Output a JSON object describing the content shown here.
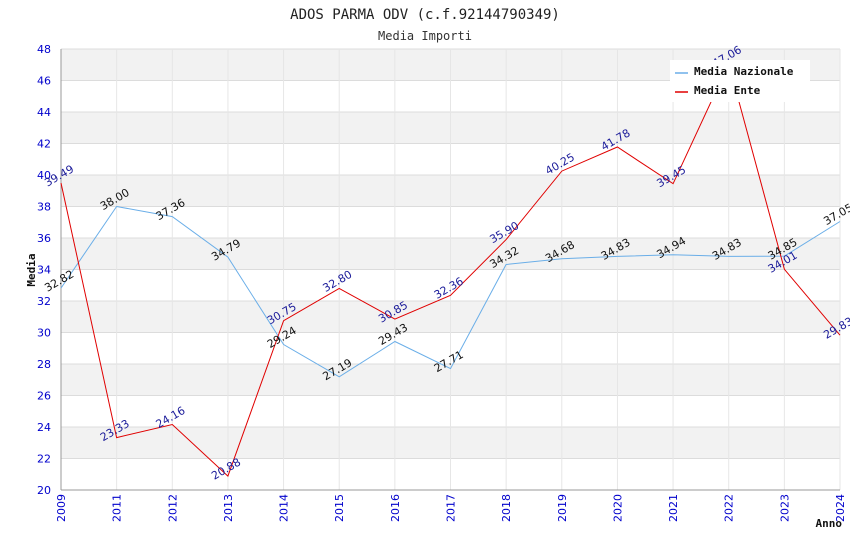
{
  "chart_data": {
    "type": "line",
    "title": "ADOS PARMA ODV (c.f.92144790349)",
    "subtitle": "Media Importi",
    "xlabel": "Anno",
    "ylabel": "Media",
    "ylim": [
      20,
      48
    ],
    "ytick_step": 2,
    "categories": [
      "2009",
      "2011",
      "2012",
      "2013",
      "2014",
      "2015",
      "2016",
      "2017",
      "2018",
      "2019",
      "2020",
      "2021",
      "2022",
      "2023",
      "2024"
    ],
    "series": [
      {
        "name": "Media Nazionale",
        "color": "#6aaee8",
        "label_color": "#111111",
        "values": [
          32.82,
          38.0,
          37.36,
          34.79,
          29.24,
          27.19,
          29.43,
          27.71,
          34.32,
          34.68,
          34.83,
          34.94,
          34.83,
          34.85,
          37.05
        ],
        "labels": [
          "32.82",
          "38.00",
          "37.36",
          "34.79",
          "29.24",
          "27.19",
          "29.43",
          "27.71",
          "34.32",
          "34.68",
          "34.83",
          "34.94",
          "34.83",
          "34.85",
          "37.05"
        ]
      },
      {
        "name": "Media Ente",
        "color": "#e00000",
        "label_color": "#1a1a99",
        "values": [
          39.49,
          23.33,
          24.16,
          20.88,
          30.75,
          32.8,
          30.85,
          32.36,
          35.9,
          40.25,
          41.78,
          39.45,
          47.06,
          34.01,
          29.83
        ],
        "labels": [
          "39.49",
          "23.33",
          "24.16",
          "20.88",
          "30.75",
          "32.80",
          "30.85",
          "32.36",
          "35.90",
          "40.25",
          "41.78",
          "39.45",
          "47.06",
          "34.01",
          "29.83"
        ]
      }
    ],
    "grid": true,
    "legend_position": "top-right"
  }
}
